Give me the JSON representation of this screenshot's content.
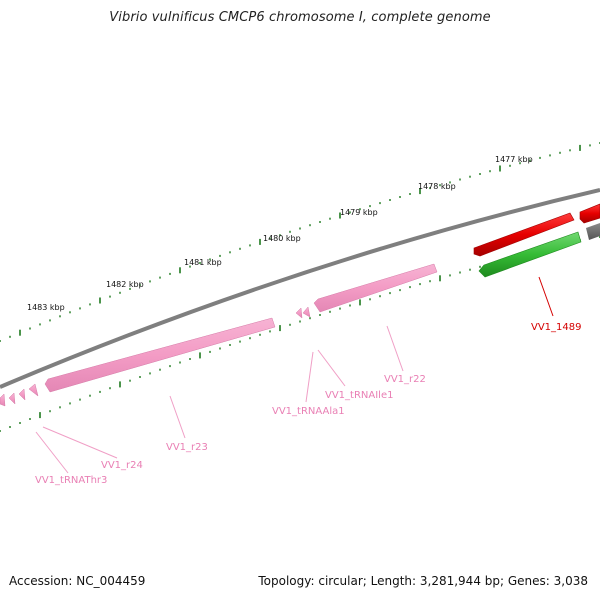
{
  "title": "Vibrio vulnificus CMCP6 chromosome I, complete genome",
  "footer": {
    "accession": "Accession: NC_004459",
    "info": "Topology: circular; Length: 3,281,944 bp; Genes: 3,038"
  },
  "scale_labels": [
    "1477 kbp",
    "1478 kbp",
    "1479 kbp",
    "1480 kbp",
    "1481 kbp",
    "1482 kbp",
    "1483 kbp"
  ],
  "gene_labels": [
    "VV1_1489",
    "VV1_r22",
    "VV1_tRNAIle1",
    "VV1_tRNAAla1",
    "VV1_r23",
    "VV1_r24",
    "VV1_tRNAThr3"
  ],
  "colors": {
    "backbone": "#7f7f7f",
    "tick": "#1e7a1e",
    "cds_forward": "#e80000",
    "cds_reverse": "#2fb82f",
    "rna": "#f6a0c8",
    "rna_label": "#e97fb4",
    "cds_label": "#d40000"
  }
}
